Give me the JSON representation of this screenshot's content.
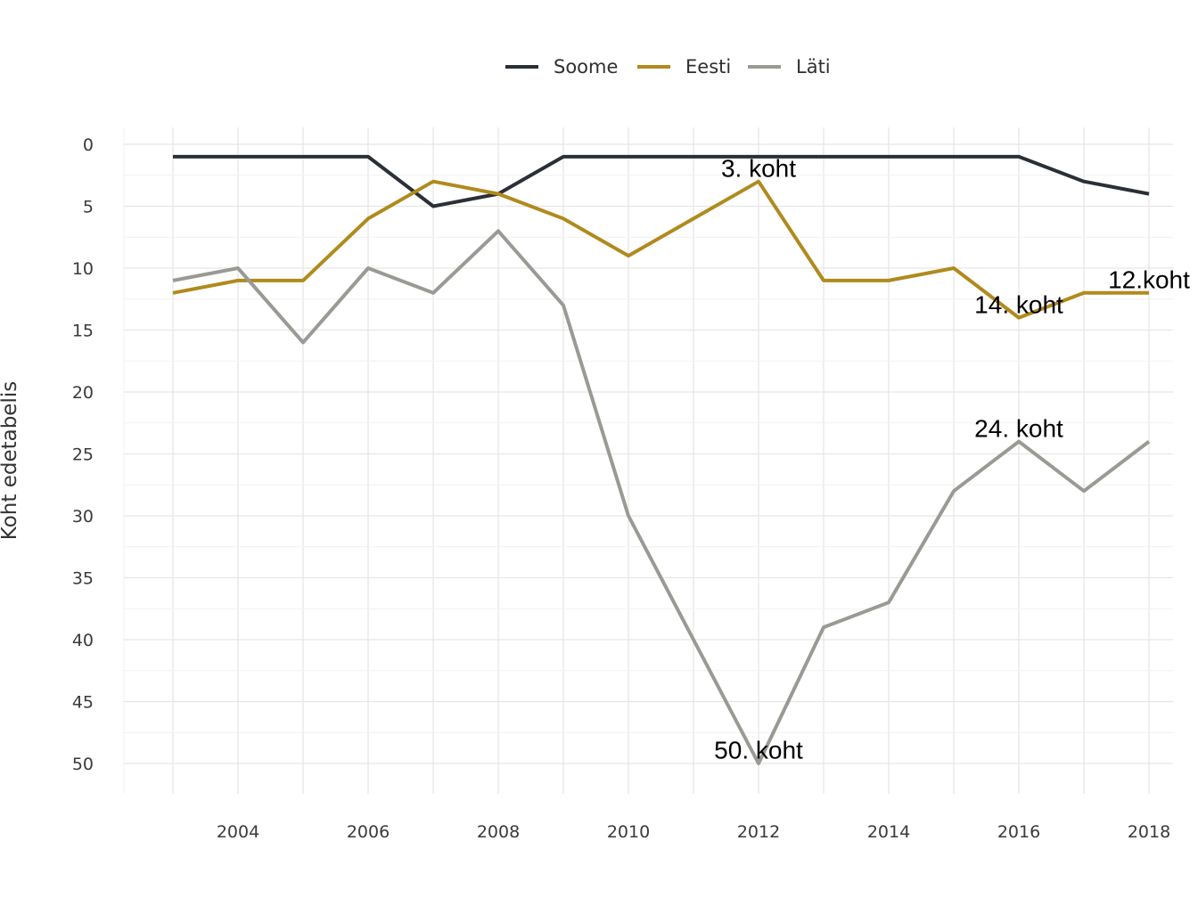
{
  "chart_data": {
    "type": "line",
    "title": "",
    "xlabel": "",
    "ylabel": "Koht edetabelis",
    "x": [
      2003,
      2004,
      2005,
      2006,
      2007,
      2008,
      2009,
      2010,
      2011,
      2012,
      2013,
      2014,
      2015,
      2016,
      2017,
      2018
    ],
    "xlim": [
      2002.25,
      2018.25
    ],
    "ylim": [
      0,
      52.3
    ],
    "y_reversed": true,
    "x_ticks": [
      2004,
      2006,
      2008,
      2010,
      2012,
      2014,
      2016,
      2018
    ],
    "y_ticks": [
      0,
      5,
      10,
      15,
      20,
      25,
      30,
      35,
      40,
      45,
      50
    ],
    "grid": true,
    "legend_position": "top",
    "series": [
      {
        "name": "Soome",
        "color": "#2b2f36",
        "values": [
          1,
          1,
          1,
          1,
          5,
          4,
          1,
          1,
          1,
          1,
          1,
          1,
          1,
          1,
          3,
          4
        ]
      },
      {
        "name": "Eesti",
        "color": "#b08a1d",
        "values": [
          12,
          11,
          11,
          6,
          3,
          4,
          6,
          9,
          6,
          3,
          11,
          11,
          10,
          14,
          12,
          12
        ]
      },
      {
        "name": "Läti",
        "color": "#9a9a95",
        "values": [
          11,
          10,
          16,
          10,
          12,
          7,
          13,
          30,
          40,
          50,
          39,
          37,
          28,
          24,
          28,
          24
        ]
      }
    ],
    "annotations": [
      {
        "text": "3. koht",
        "x": 2012,
        "y": 1.9
      },
      {
        "text": "50. koht",
        "x": 2012,
        "y": 48.9
      },
      {
        "text": "14. koht",
        "x": 2016,
        "y": 12.9
      },
      {
        "text": "24. koht",
        "x": 2016,
        "y": 22.9
      },
      {
        "text": "12.koht",
        "x": 2018,
        "y": 10.9
      }
    ]
  }
}
